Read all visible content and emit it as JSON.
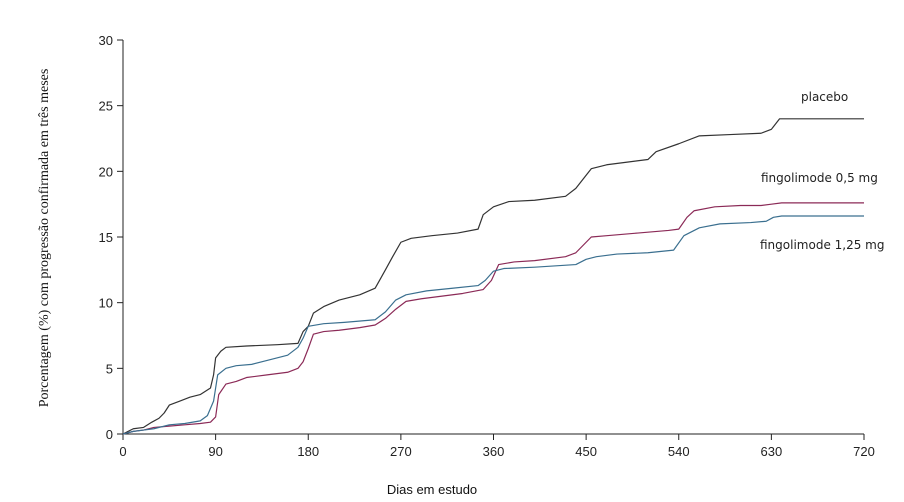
{
  "chart_data": {
    "type": "line",
    "xlabel": "Dias em estudo",
    "ylabel": "Porcentagem (%) com progressão confirmada em três meses",
    "xlim": [
      0,
      720
    ],
    "ylim": [
      0,
      30
    ],
    "xticks": [
      0,
      90,
      180,
      270,
      360,
      450,
      540,
      630,
      720
    ],
    "yticks": [
      0,
      5,
      10,
      15,
      20,
      25,
      30
    ],
    "grid": false,
    "step": true,
    "series": [
      {
        "name": "placebo",
        "color": "#333333",
        "points": [
          [
            0,
            0
          ],
          [
            10,
            0.4
          ],
          [
            20,
            0.5
          ],
          [
            28,
            0.9
          ],
          [
            35,
            1.2
          ],
          [
            40,
            1.6
          ],
          [
            45,
            2.2
          ],
          [
            55,
            2.5
          ],
          [
            65,
            2.8
          ],
          [
            75,
            3.0
          ],
          [
            85,
            3.5
          ],
          [
            88,
            4.5
          ],
          [
            90,
            5.8
          ],
          [
            95,
            6.3
          ],
          [
            100,
            6.6
          ],
          [
            120,
            6.7
          ],
          [
            150,
            6.8
          ],
          [
            170,
            6.9
          ],
          [
            175,
            7.8
          ],
          [
            180,
            8.2
          ],
          [
            185,
            9.2
          ],
          [
            195,
            9.7
          ],
          [
            210,
            10.2
          ],
          [
            230,
            10.6
          ],
          [
            245,
            11.1
          ],
          [
            255,
            12.5
          ],
          [
            262,
            13.5
          ],
          [
            270,
            14.6
          ],
          [
            280,
            14.9
          ],
          [
            300,
            15.1
          ],
          [
            325,
            15.3
          ],
          [
            345,
            15.6
          ],
          [
            350,
            16.7
          ],
          [
            360,
            17.3
          ],
          [
            375,
            17.7
          ],
          [
            400,
            17.8
          ],
          [
            430,
            18.1
          ],
          [
            440,
            18.7
          ],
          [
            450,
            19.7
          ],
          [
            455,
            20.2
          ],
          [
            470,
            20.5
          ],
          [
            490,
            20.7
          ],
          [
            510,
            20.9
          ],
          [
            518,
            21.5
          ],
          [
            540,
            22.1
          ],
          [
            560,
            22.7
          ],
          [
            590,
            22.8
          ],
          [
            620,
            22.9
          ],
          [
            630,
            23.2
          ],
          [
            638,
            24.0
          ],
          [
            660,
            24.0
          ],
          [
            720,
            24.0
          ]
        ]
      },
      {
        "name": "fingolimode 0,5 mg",
        "color": "#8b2a57",
        "points": [
          [
            0,
            0
          ],
          [
            10,
            0.2
          ],
          [
            20,
            0.3
          ],
          [
            30,
            0.5
          ],
          [
            45,
            0.6
          ],
          [
            60,
            0.7
          ],
          [
            75,
            0.8
          ],
          [
            85,
            0.9
          ],
          [
            90,
            1.3
          ],
          [
            93,
            3.0
          ],
          [
            100,
            3.8
          ],
          [
            110,
            4.0
          ],
          [
            120,
            4.3
          ],
          [
            140,
            4.5
          ],
          [
            160,
            4.7
          ],
          [
            170,
            5.0
          ],
          [
            175,
            5.5
          ],
          [
            180,
            6.5
          ],
          [
            185,
            7.6
          ],
          [
            195,
            7.8
          ],
          [
            210,
            7.9
          ],
          [
            230,
            8.1
          ],
          [
            245,
            8.3
          ],
          [
            255,
            8.8
          ],
          [
            265,
            9.5
          ],
          [
            275,
            10.1
          ],
          [
            290,
            10.3
          ],
          [
            310,
            10.5
          ],
          [
            330,
            10.7
          ],
          [
            350,
            11.0
          ],
          [
            358,
            11.7
          ],
          [
            365,
            12.9
          ],
          [
            380,
            13.1
          ],
          [
            400,
            13.2
          ],
          [
            430,
            13.5
          ],
          [
            440,
            13.8
          ],
          [
            450,
            14.6
          ],
          [
            455,
            15.0
          ],
          [
            470,
            15.1
          ],
          [
            500,
            15.3
          ],
          [
            530,
            15.5
          ],
          [
            540,
            15.6
          ],
          [
            548,
            16.5
          ],
          [
            555,
            17.0
          ],
          [
            575,
            17.3
          ],
          [
            600,
            17.4
          ],
          [
            620,
            17.4
          ],
          [
            630,
            17.5
          ],
          [
            640,
            17.6
          ],
          [
            660,
            17.6
          ],
          [
            720,
            17.6
          ]
        ]
      },
      {
        "name": "fingolimode 1,25 mg",
        "color": "#3a6f8f",
        "points": [
          [
            0,
            0
          ],
          [
            10,
            0.2
          ],
          [
            20,
            0.3
          ],
          [
            30,
            0.4
          ],
          [
            45,
            0.7
          ],
          [
            60,
            0.8
          ],
          [
            75,
            1.0
          ],
          [
            82,
            1.4
          ],
          [
            88,
            2.5
          ],
          [
            92,
            4.5
          ],
          [
            100,
            5.0
          ],
          [
            110,
            5.2
          ],
          [
            125,
            5.3
          ],
          [
            140,
            5.6
          ],
          [
            160,
            6.0
          ],
          [
            170,
            6.6
          ],
          [
            175,
            7.3
          ],
          [
            180,
            8.2
          ],
          [
            195,
            8.4
          ],
          [
            215,
            8.5
          ],
          [
            245,
            8.7
          ],
          [
            255,
            9.3
          ],
          [
            265,
            10.2
          ],
          [
            275,
            10.6
          ],
          [
            295,
            10.9
          ],
          [
            320,
            11.1
          ],
          [
            345,
            11.3
          ],
          [
            352,
            11.7
          ],
          [
            360,
            12.4
          ],
          [
            370,
            12.6
          ],
          [
            400,
            12.7
          ],
          [
            440,
            12.9
          ],
          [
            450,
            13.3
          ],
          [
            460,
            13.5
          ],
          [
            480,
            13.7
          ],
          [
            510,
            13.8
          ],
          [
            535,
            14.0
          ],
          [
            545,
            15.1
          ],
          [
            560,
            15.7
          ],
          [
            580,
            16.0
          ],
          [
            610,
            16.1
          ],
          [
            625,
            16.2
          ],
          [
            632,
            16.5
          ],
          [
            640,
            16.6
          ],
          [
            660,
            16.6
          ],
          [
            720,
            16.6
          ]
        ]
      }
    ]
  }
}
